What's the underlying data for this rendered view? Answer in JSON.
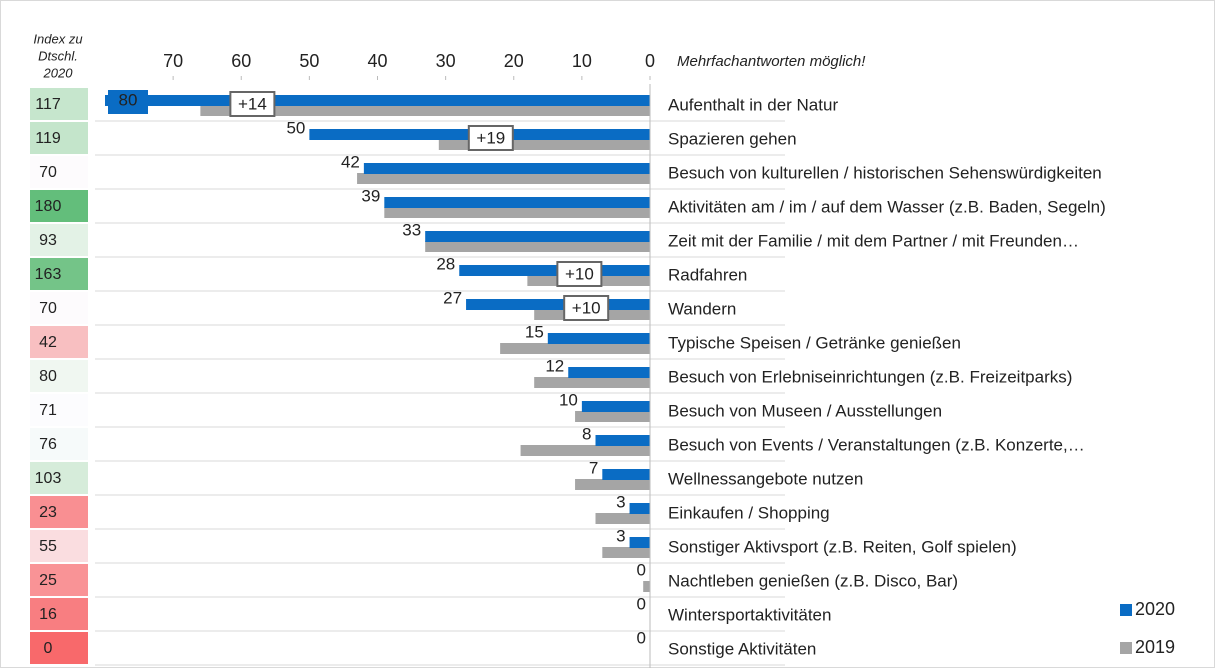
{
  "chart_data": {
    "type": "bar",
    "orientation": "horizontal",
    "x_reversed": true,
    "index_header": [
      "Index zu",
      "Dtschl.",
      "2020"
    ],
    "note": "Mehrfachantworten möglich!",
    "categories": [
      "Aufenthalt in der Natur",
      "Spazieren gehen",
      "Besuch von kulturellen / historischen Sehenswürdigkeiten",
      "Aktivitäten am / im / auf dem Wasser (z.B. Baden, Segeln)",
      "Zeit mit der Familie / mit dem Partner / mit Freunden…",
      "Radfahren",
      "Wandern",
      "Typische Speisen / Getränke genießen",
      "Besuch von Erlebniseinrichtungen (z.B. Freizeitparks)",
      "Besuch von Museen / Ausstellungen",
      "Besuch von Events / Veranstaltungen (z.B. Konzerte,…",
      "Wellnessangebote nutzen",
      "Einkaufen / Shopping",
      "Sonstiger Aktivsport (z.B. Reiten, Golf spielen)",
      "Nachtleben genießen (z.B. Disco, Bar)",
      "Wintersportaktivitäten",
      "Sonstige Aktivitäten"
    ],
    "index": [
      117,
      119,
      70,
      180,
      93,
      163,
      70,
      42,
      80,
      71,
      76,
      103,
      23,
      55,
      25,
      16,
      0
    ],
    "index_colors": [
      "#c6e6cd",
      "#c4e5cb",
      "#fdfbfd",
      "#63be7b",
      "#e3f2e6",
      "#74c488",
      "#fdfbfd",
      "#f8bfc1",
      "#f0f7f1",
      "#fcfcfe",
      "#f6fafa",
      "#d6ecda",
      "#f98f92",
      "#fadde0",
      "#f99396",
      "#f87e81",
      "#f8696b"
    ],
    "series": [
      {
        "name": "2020",
        "color": "#0a6cc4",
        "values": [
          80,
          50,
          42,
          39,
          33,
          28,
          27,
          15,
          12,
          10,
          8,
          7,
          3,
          3,
          0,
          0,
          0
        ]
      },
      {
        "name": "2019",
        "color": "#a5a5a5",
        "values": [
          66,
          31,
          43,
          39,
          33,
          18,
          17,
          22,
          17,
          11,
          19,
          11,
          8,
          7,
          1,
          0,
          0
        ]
      }
    ],
    "differences": [
      "+14",
      "+19",
      null,
      null,
      null,
      "+10",
      "+10",
      null,
      null,
      null,
      null,
      null,
      null,
      null,
      null,
      null,
      null
    ],
    "xlim": [
      0,
      80
    ],
    "xticks": [
      0,
      10,
      20,
      30,
      40,
      50,
      60,
      70
    ]
  }
}
